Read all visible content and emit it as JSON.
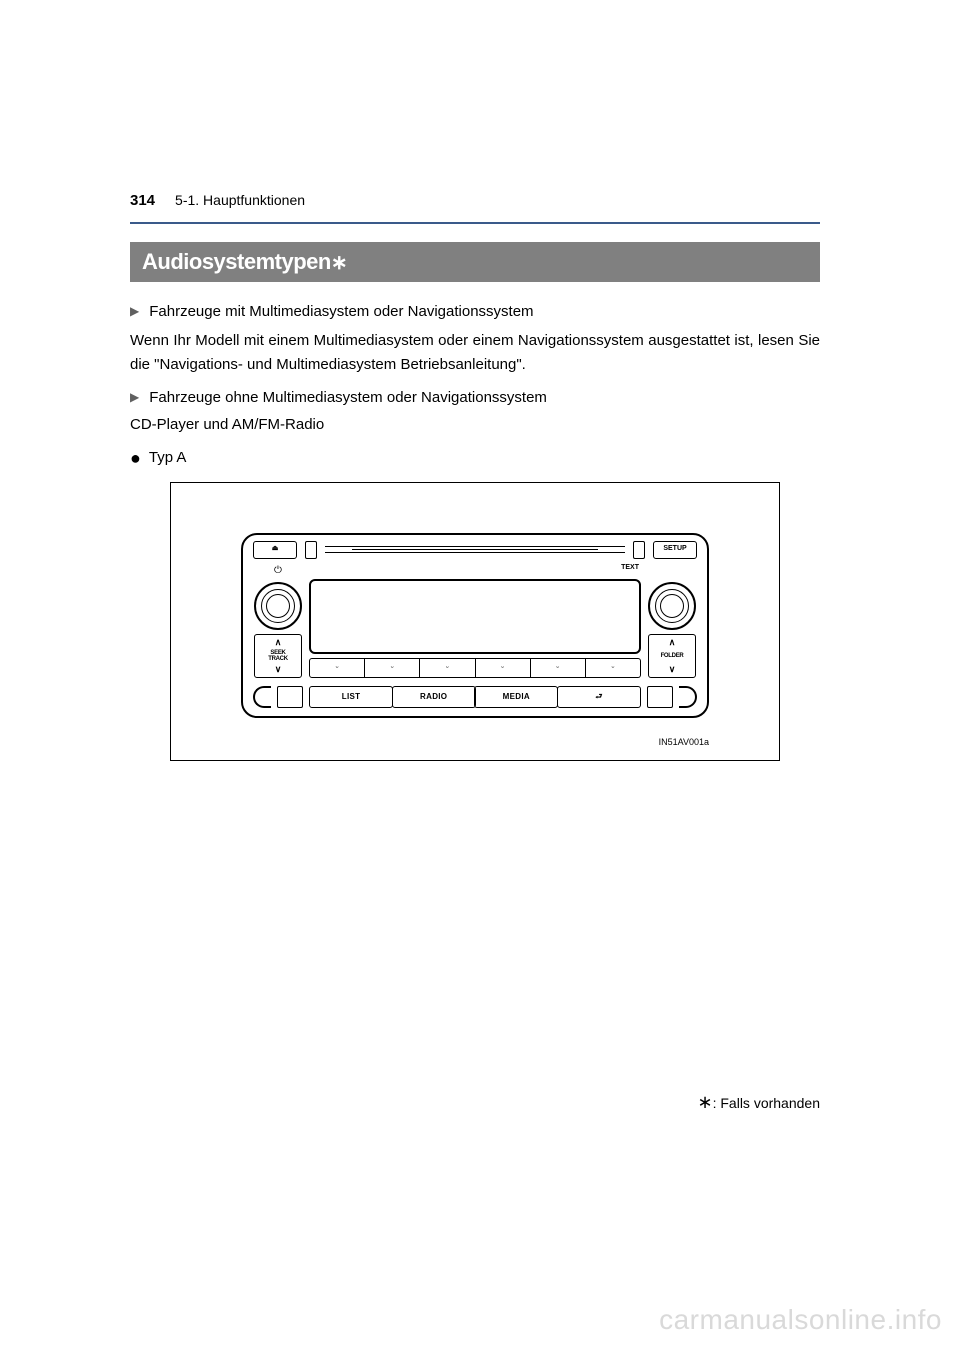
{
  "header": {
    "page_number": "314",
    "section": "5-1. Hauptfunktionen"
  },
  "title": {
    "text": "Audiosystemtypen",
    "asterisk": "∗"
  },
  "body": {
    "bullet_glyph": "▶",
    "item1_label": "Fahrzeuge mit Multimediasystem oder Navigationssystem",
    "item1_text": "Wenn Ihr Modell mit einem Multimediasystem oder einem Navigationssystem ausgestattet ist, lesen Sie die \"Navigations- und Multimediasystem Betriebsanleitung\".",
    "item2_label": "Fahrzeuge ohne Multimediasystem oder Navigationssystem",
    "item2_text": "CD-Player und AM/FM-Radio",
    "type_bullet": "●",
    "type_a": "Typ A"
  },
  "figure": {
    "id": "IN51AV001a",
    "eject_glyph": "⏏",
    "setup_label": "SETUP",
    "power_glyph": "⏻",
    "text_label": "TEXT",
    "seek_top": "∧",
    "seek_line1": "SEEK",
    "seek_line2": "TRACK",
    "seek_bot": "∨",
    "folder_top": "∧",
    "folder_label": "FOLDER",
    "folder_bot": "∨",
    "preset_glyph": "⏑",
    "bottom_btn1": "LIST",
    "bottom_btn2": "RADIO",
    "bottom_btn3": "MEDIA",
    "bottom_btn4_glyph": "⮐"
  },
  "footnote": {
    "asterisk": "∗",
    "text": ": Falls vorhanden"
  },
  "watermark": "carmanualsonline.info",
  "colors": {
    "rule": "#3a5a8a",
    "titlebar_bg": "#808080",
    "watermark": "#d9d9d9"
  }
}
